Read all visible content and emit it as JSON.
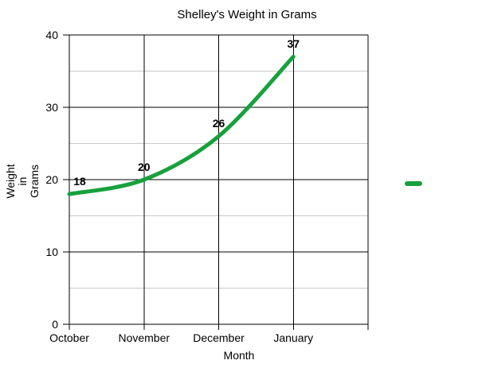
{
  "chart_data": {
    "type": "line",
    "title": "Shelley's Weight in Grams",
    "xlabel": "Month",
    "ylabel": "Weight in Grams",
    "ylabel_lines": [
      "Weight",
      "in",
      "Grams"
    ],
    "categories": [
      "October",
      "November",
      "December",
      "January"
    ],
    "values": [
      18,
      20,
      26,
      37
    ],
    "data_labels": [
      "18",
      "20",
      "26",
      "37"
    ],
    "ylim": [
      0,
      40
    ],
    "y_major_ticks": [
      0,
      10,
      20,
      30,
      40
    ],
    "y_minor_ticks": [
      5,
      15,
      25,
      35
    ],
    "grid": "horizontal major black, horizontal minor light-gray, vertical at categories black",
    "legend_position": "right-middle",
    "legend_label": "",
    "line_smoothed": true,
    "colors": {
      "line": "#18A03C",
      "major_grid": "#000000",
      "minor_grid": "#C9C9C9",
      "text": "#000000",
      "background": "#FFFFFF"
    }
  }
}
